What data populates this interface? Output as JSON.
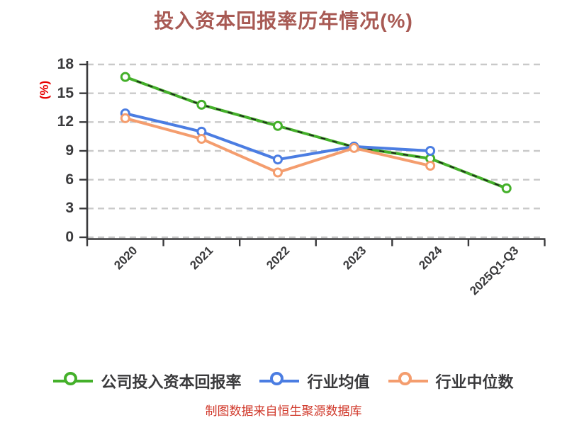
{
  "title": "投入资本回报率历年情况(%)",
  "source_note": "制图数据来自恒生聚源数据库",
  "colors": {
    "background": "#ffffff",
    "title": "#a85a54",
    "axis": "#3a3a3c",
    "tick_text": "#3a3a3c",
    "grid": "#c9c9c9",
    "y_axis_label_red": "#e60000",
    "source_note_red": "#d0382a",
    "series_company_green": "#44b02a",
    "series_mean_blue": "#4b7de2",
    "series_median_orange": "#f49d6e",
    "marker_fill": "#ffffff",
    "company_dash_overlay": "#1e1e1e"
  },
  "chart_data": {
    "type": "line",
    "title": "投入资本回报率历年情况(%)",
    "xlabel": "",
    "ylabel": "(%)",
    "ylim": [
      0,
      18
    ],
    "yticks": [
      0,
      3,
      6,
      9,
      12,
      15,
      18
    ],
    "grid": "horizontal dashed",
    "legend_position": "bottom",
    "categories": [
      "2020",
      "2021",
      "2022",
      "2023",
      "2024",
      "2025Q1-Q3"
    ],
    "series": [
      {
        "name": "公司投入资本回报率",
        "color": "#44b02a",
        "dashed_overlay": true,
        "values": [
          16.7,
          13.8,
          11.6,
          9.4,
          8.2,
          5.1
        ]
      },
      {
        "name": "行业均值",
        "color": "#4b7de2",
        "dashed_overlay": false,
        "values": [
          12.9,
          11.0,
          8.1,
          9.45,
          9.0,
          null
        ]
      },
      {
        "name": "行业中位数",
        "color": "#f49d6e",
        "dashed_overlay": false,
        "values": [
          12.4,
          10.25,
          6.75,
          9.3,
          7.45,
          null
        ]
      }
    ]
  }
}
